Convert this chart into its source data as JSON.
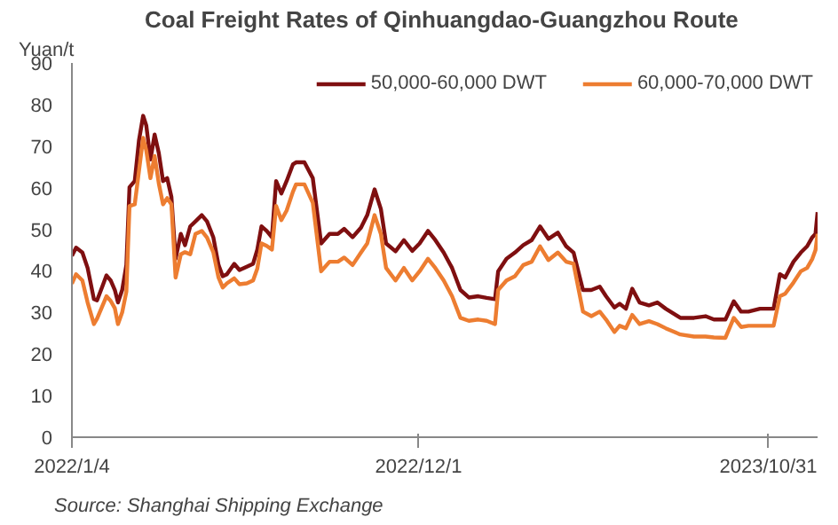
{
  "chart_data": {
    "type": "line",
    "title": "Coal Freight Rates of Qinhuangdao-Guangzhou  Route",
    "ylabel": "Yuan/t",
    "annotations": [
      "Source:  Shanghai Shipping Exchange"
    ],
    "x": [
      "2022-01-04",
      "2022-01-08",
      "2022-01-14",
      "2022-01-19",
      "2022-01-25",
      "2022-01-28",
      "2022-02-02",
      "2022-02-06",
      "2022-02-10",
      "2022-02-14",
      "2022-02-17",
      "2022-02-21",
      "2022-02-25",
      "2022-02-28",
      "2022-03-05",
      "2022-03-09",
      "2022-03-13",
      "2022-03-16",
      "2022-03-20",
      "2022-03-24",
      "2022-03-28",
      "2022-04-01",
      "2022-04-05",
      "2022-04-09",
      "2022-04-13",
      "2022-04-18",
      "2022-04-22",
      "2022-04-27",
      "2022-05-02",
      "2022-05-08",
      "2022-05-13",
      "2022-05-19",
      "2022-05-24",
      "2022-05-28",
      "2022-06-01",
      "2022-06-08",
      "2022-06-13",
      "2022-06-20",
      "2022-06-26",
      "2022-06-30",
      "2022-07-04",
      "2022-07-09",
      "2022-07-14",
      "2022-07-18",
      "2022-07-23",
      "2022-07-28",
      "2022-08-03",
      "2022-08-06",
      "2022-08-14",
      "2022-08-22",
      "2022-08-30",
      "2022-09-07",
      "2022-09-15",
      "2022-09-21",
      "2022-09-29",
      "2022-10-07",
      "2022-10-13",
      "2022-10-20",
      "2022-10-26",
      "2022-10-31",
      "2022-11-09",
      "2022-11-17",
      "2022-11-25",
      "2022-12-02",
      "2022-12-10",
      "2022-12-17",
      "2022-12-25",
      "2023-01-02",
      "2023-01-10",
      "2023-01-18",
      "2023-01-27",
      "2023-02-04",
      "2023-02-12",
      "2023-02-15",
      "2023-02-23",
      "2023-03-03",
      "2023-03-11",
      "2023-03-19",
      "2023-03-27",
      "2023-04-04",
      "2023-04-13",
      "2023-04-21",
      "2023-04-28",
      "2023-05-07",
      "2023-05-15",
      "2023-05-23",
      "2023-05-29",
      "2023-06-06",
      "2023-06-11",
      "2023-06-17",
      "2023-06-23",
      "2023-06-30",
      "2023-07-09",
      "2023-07-17",
      "2023-07-25",
      "2023-08-08",
      "2023-08-21",
      "2023-09-01",
      "2023-09-09",
      "2023-09-20",
      "2023-09-28",
      "2023-10-05",
      "2023-10-12",
      "2023-10-23",
      "2023-11-05",
      "2023-11-11",
      "2023-11-16",
      "2023-11-24",
      "2023-12-01",
      "2023-12-07",
      "2023-12-12",
      "2023-12-15",
      "2023-12-17"
    ],
    "series": [
      {
        "name": "50,000-60,000 DWT",
        "color": "#7f0f10",
        "values": [
          43.6,
          45.6,
          44.4,
          40.7,
          33.2,
          32.9,
          36.2,
          38.9,
          37.7,
          35.4,
          32.4,
          35.4,
          41.4,
          60.1,
          61.6,
          71.3,
          77.3,
          75.0,
          66.8,
          72.8,
          68.3,
          61.6,
          62.3,
          57.8,
          42.9,
          48.9,
          46.2,
          50.7,
          51.9,
          53.4,
          51.9,
          48.1,
          41.4,
          38.7,
          39.2,
          41.7,
          40.2,
          41.0,
          41.7,
          45.1,
          50.7,
          49.6,
          48.1,
          61.6,
          58.6,
          61.6,
          65.6,
          66.1,
          66.1,
          62.3,
          46.6,
          48.9,
          48.9,
          50.1,
          48.1,
          50.4,
          53.4,
          59.6,
          54.9,
          46.6,
          44.7,
          47.4,
          44.8,
          46.6,
          49.6,
          47.4,
          44.4,
          40.7,
          35.4,
          33.6,
          33.9,
          33.5,
          33.2,
          39.9,
          42.9,
          44.4,
          46.2,
          47.4,
          50.7,
          47.7,
          49.2,
          45.9,
          44.4,
          35.4,
          35.4,
          36.2,
          33.9,
          31.2,
          32.1,
          30.9,
          35.7,
          32.4,
          31.7,
          32.4,
          30.9,
          28.7,
          28.7,
          29.1,
          28.3,
          28.3,
          32.7,
          30.2,
          30.2,
          30.9,
          30.9,
          39.2,
          38.4,
          42.2,
          44.4,
          45.9,
          48.1,
          48.9,
          54.1
        ]
      },
      {
        "name": "60,000-70,000 DWT",
        "color": "#ed7d31",
        "values": [
          36.9,
          39.2,
          37.7,
          32.4,
          27.2,
          28.5,
          31.5,
          33.9,
          32.8,
          31.0,
          27.2,
          30.0,
          35.0,
          55.6,
          56.0,
          64.0,
          72.0,
          69.0,
          62.3,
          67.6,
          61.0,
          56.0,
          57.5,
          56.0,
          38.4,
          44.0,
          44.5,
          44.0,
          48.9,
          49.6,
          48.0,
          44.5,
          38.4,
          36.0,
          37.0,
          38.2,
          36.8,
          37.0,
          37.7,
          40.5,
          46.6,
          46.0,
          45.1,
          55.6,
          52.2,
          54.5,
          59.0,
          60.8,
          60.8,
          56.4,
          39.9,
          42.2,
          42.2,
          43.2,
          41.4,
          44.4,
          46.6,
          53.4,
          48.9,
          40.7,
          37.7,
          40.7,
          37.7,
          39.9,
          42.9,
          40.7,
          37.7,
          33.9,
          28.7,
          28.0,
          28.3,
          28.0,
          27.2,
          35.4,
          37.7,
          38.7,
          41.4,
          42.2,
          45.9,
          42.6,
          44.4,
          42.2,
          41.7,
          30.2,
          29.1,
          30.2,
          28.3,
          25.3,
          26.8,
          26.2,
          29.4,
          27.2,
          27.9,
          27.2,
          26.2,
          24.7,
          24.2,
          24.2,
          24.0,
          23.9,
          28.7,
          26.5,
          26.8,
          26.8,
          26.8,
          33.9,
          34.5,
          37.2,
          39.9,
          40.7,
          42.9,
          45.0,
          48.9
        ]
      }
    ],
    "xlim": [
      "2022-01-04",
      "2023-12-17"
    ],
    "xticks": [
      {
        "value": "2022-01-04",
        "label": "2022/1/4"
      },
      {
        "value": "2022-12-01",
        "label": "2022/12/1"
      },
      {
        "value": "2023-10-31",
        "label": "2023/10/31"
      }
    ],
    "ylim": [
      0,
      90
    ],
    "yticks": [
      0,
      10,
      20,
      30,
      40,
      50,
      60,
      70,
      80,
      90
    ],
    "grid": false,
    "legend": "top",
    "line_style": "solid"
  }
}
